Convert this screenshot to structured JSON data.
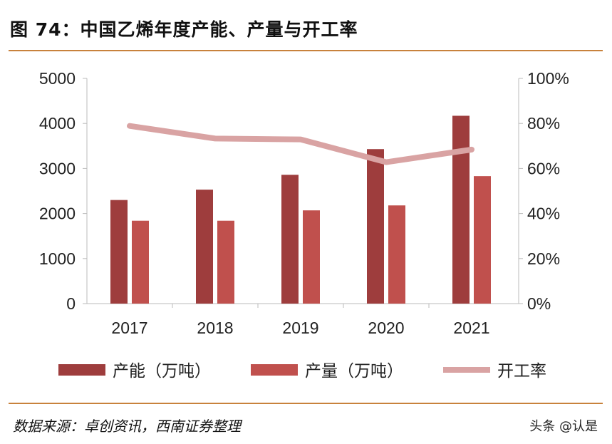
{
  "title": "图 74：中国乙烯年度产能、产量与开工率",
  "source": "数据来源：卓创资讯，西南证券整理",
  "watermark": "头条 @认是",
  "chart_data": {
    "type": "bar",
    "categories": [
      "2017",
      "2018",
      "2019",
      "2020",
      "2021"
    ],
    "series": [
      {
        "name": "产能（万吨）",
        "type": "bar",
        "axis": "left",
        "color": "#9e3d3d",
        "values": [
          2300,
          2530,
          2860,
          3430,
          4170
        ]
      },
      {
        "name": "产量（万吨）",
        "type": "bar",
        "axis": "left",
        "color": "#c0504d",
        "values": [
          1840,
          1840,
          2070,
          2180,
          2830
        ]
      },
      {
        "name": "开工率",
        "type": "line",
        "axis": "right",
        "color": "#d9a3a3",
        "values": [
          78.9,
          73.3,
          72.9,
          62.8,
          68.4
        ]
      }
    ],
    "ylim": [
      0,
      5000
    ],
    "yticks": [
      "0",
      "1000",
      "2000",
      "3000",
      "4000",
      "5000"
    ],
    "y2lim": [
      0,
      100
    ],
    "y2ticks": [
      "0%",
      "20%",
      "40%",
      "60%",
      "80%",
      "100%"
    ],
    "legend": "bottom"
  }
}
